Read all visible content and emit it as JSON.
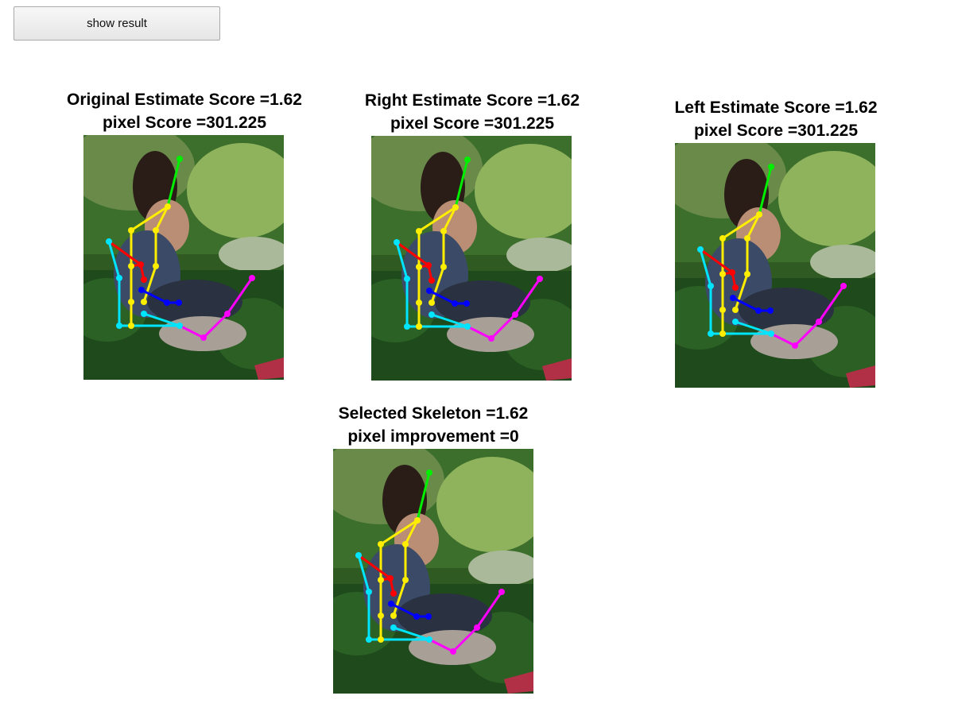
{
  "toolbar": {
    "show_result_label": "show result"
  },
  "panels": [
    {
      "id": "original",
      "line1": "Original Estimate Score =1.62",
      "line2": "pixel Score =301.225"
    },
    {
      "id": "right",
      "line1": "Right Estimate Score =1.62",
      "line2": "pixel Score =301.225"
    },
    {
      "id": "left",
      "line1": "Left Estimate Score =1.62",
      "line2": "pixel Score =301.225"
    },
    {
      "id": "selected",
      "line1": "Selected Skeleton =1.62",
      "line2": "pixel improvement =0"
    }
  ],
  "skeleton_colors": {
    "head": "#00ee00",
    "torso": "#ffee00",
    "right_arm": "#ff0000",
    "left_arm": "#0000ff",
    "right_leg": "#00e5ff",
    "left_leg": "#ff00ff"
  }
}
